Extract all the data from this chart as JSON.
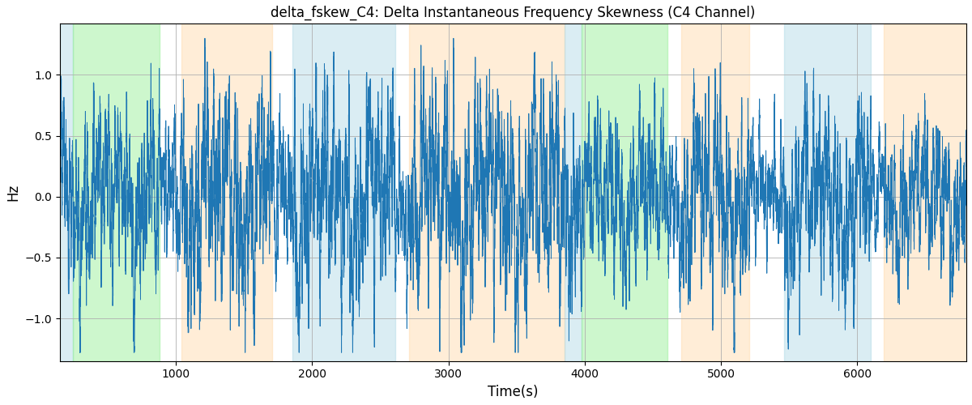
{
  "title": "delta_fskew_C4: Delta Instantaneous Frequency Skewness (C4 Channel)",
  "xlabel": "Time(s)",
  "ylabel": "Hz",
  "xlim": [
    150,
    6800
  ],
  "ylim": [
    -1.35,
    1.42
  ],
  "yticks": [
    -1.0,
    -0.5,
    0.0,
    0.5,
    1.0
  ],
  "xticks": [
    1000,
    2000,
    3000,
    4000,
    5000,
    6000
  ],
  "line_color": "#1f77b4",
  "line_width": 0.7,
  "bg_color": "#ffffff",
  "grid_color": "#b0b0b0",
  "regions": [
    {
      "xmin": 150,
      "xmax": 245,
      "color": "#add8e6",
      "alpha": 0.45
    },
    {
      "xmin": 245,
      "xmax": 880,
      "color": "#90ee90",
      "alpha": 0.45
    },
    {
      "xmin": 1040,
      "xmax": 1710,
      "color": "#ffd8a8",
      "alpha": 0.45
    },
    {
      "xmin": 1855,
      "xmax": 2610,
      "color": "#add8e6",
      "alpha": 0.45
    },
    {
      "xmin": 2710,
      "xmax": 3850,
      "color": "#ffd8a8",
      "alpha": 0.45
    },
    {
      "xmin": 3855,
      "xmax": 3980,
      "color": "#add8e6",
      "alpha": 0.45
    },
    {
      "xmin": 3980,
      "xmax": 4610,
      "color": "#90ee90",
      "alpha": 0.45
    },
    {
      "xmin": 4710,
      "xmax": 5210,
      "color": "#ffd8a8",
      "alpha": 0.45
    },
    {
      "xmin": 5460,
      "xmax": 6100,
      "color": "#add8e6",
      "alpha": 0.45
    },
    {
      "xmin": 6195,
      "xmax": 6800,
      "color": "#ffd8a8",
      "alpha": 0.45
    }
  ],
  "seed": 2024,
  "n_points": 13300
}
